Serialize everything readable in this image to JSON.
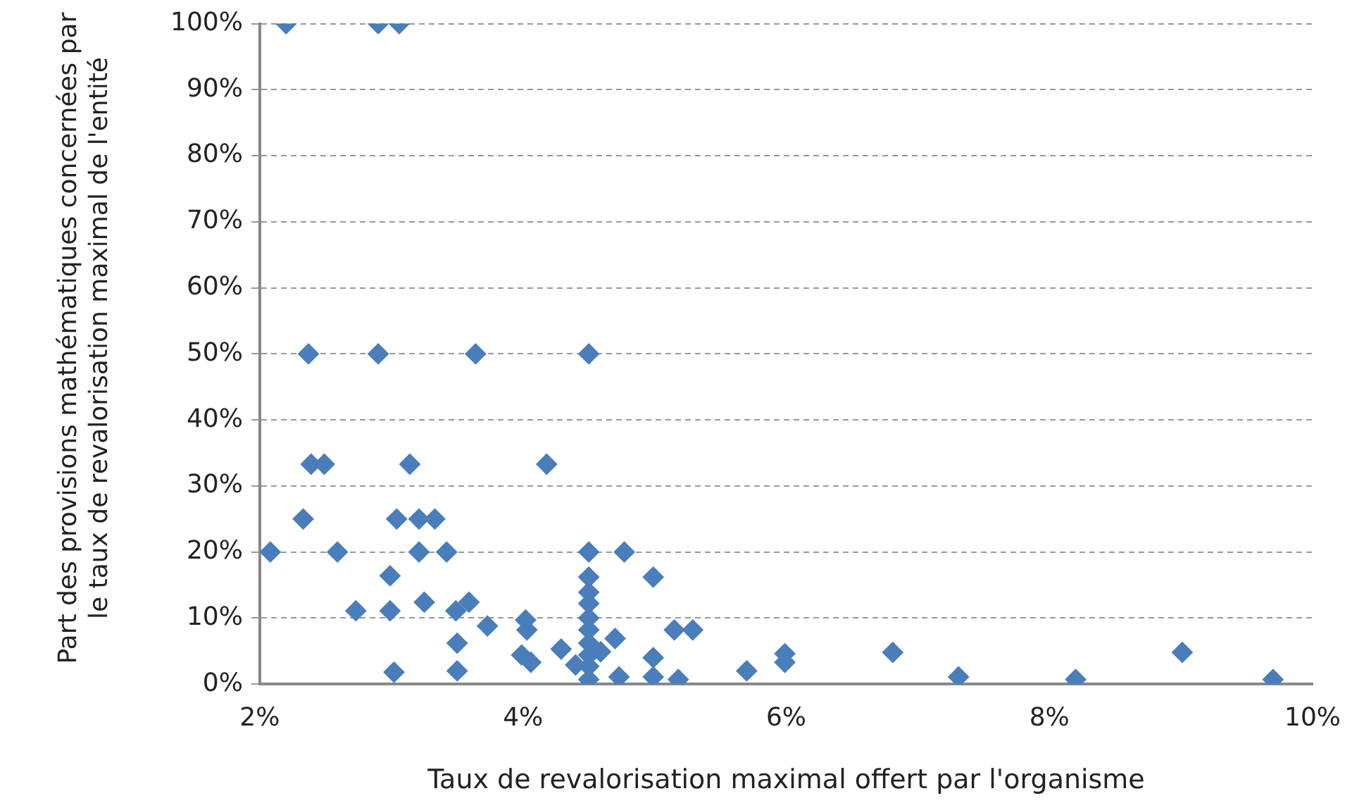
{
  "chart_data": {
    "type": "scatter",
    "xlabel": "Taux de revalorisation maximal offert par l'organisme",
    "ylabel": "Part des provisions mathématiques concernées par le taux de revalorisation  maximal de l'entité",
    "marker": "diamond",
    "grid": "y",
    "legend": false,
    "xlim": [
      2,
      10
    ],
    "xticks": [
      {
        "value": 2,
        "label": "2%"
      },
      {
        "value": 4,
        "label": "4%"
      },
      {
        "value": 6,
        "label": "6%"
      },
      {
        "value": 8,
        "label": "8%"
      },
      {
        "value": 10,
        "label": "10%"
      }
    ],
    "ylim": [
      0,
      100
    ],
    "yticks": [
      {
        "value": 0,
        "label": "0%"
      },
      {
        "value": 10,
        "label": "10%"
      },
      {
        "value": 20,
        "label": "20%"
      },
      {
        "value": 30,
        "label": "30%"
      },
      {
        "value": 40,
        "label": "40%"
      },
      {
        "value": 50,
        "label": "50%"
      },
      {
        "value": 60,
        "label": "60%"
      },
      {
        "value": 70,
        "label": "70%"
      },
      {
        "value": 80,
        "label": "80%"
      },
      {
        "value": 90,
        "label": "90%"
      },
      {
        "value": 100,
        "label": "100%"
      }
    ],
    "series": [
      {
        "color": "#4a7ebb",
        "x": [
          2.2,
          2.9,
          3.06,
          2.37,
          2.9,
          3.64,
          4.5,
          2.39,
          2.49,
          3.14,
          4.18,
          2.33,
          3.04,
          3.21,
          3.33,
          2.08,
          2.59,
          3.21,
          3.42,
          4.5,
          4.77,
          2.99,
          4.99,
          2.73,
          2.99,
          3.25,
          3.49,
          3.59,
          3.73,
          3.5,
          3.5,
          3.02,
          4.02,
          4.03,
          3.99,
          4.06,
          4.29,
          4.7,
          4.73,
          4.99,
          4.99,
          5.15,
          5.29,
          5.18,
          5.7,
          5.99,
          5.99,
          6.81,
          7.31,
          8.2,
          9.01,
          9.7,
          4.5,
          4.5,
          4.5,
          4.5,
          4.5,
          4.5,
          4.5,
          4.5,
          4.5,
          4.4,
          4.59
        ],
        "values": [
          100,
          100,
          100,
          50,
          50,
          50,
          50,
          33.3,
          33.3,
          33.3,
          33.3,
          25,
          25,
          25,
          25,
          20,
          20,
          20,
          20,
          20,
          20,
          16.4,
          16.2,
          11.1,
          11.1,
          12.4,
          11.1,
          12.4,
          8.8,
          6.2,
          2,
          1.8,
          9.7,
          8.2,
          4.4,
          3.3,
          5.3,
          6.9,
          1.1,
          4,
          1.1,
          8.2,
          8.2,
          0.7,
          2,
          4.6,
          3.3,
          4.8,
          1.1,
          0.7,
          4.8,
          0.7,
          16.2,
          13.9,
          12.2,
          10,
          8.2,
          6.2,
          4.4,
          2.7,
          0.7,
          2.9,
          4.9
        ]
      }
    ]
  }
}
